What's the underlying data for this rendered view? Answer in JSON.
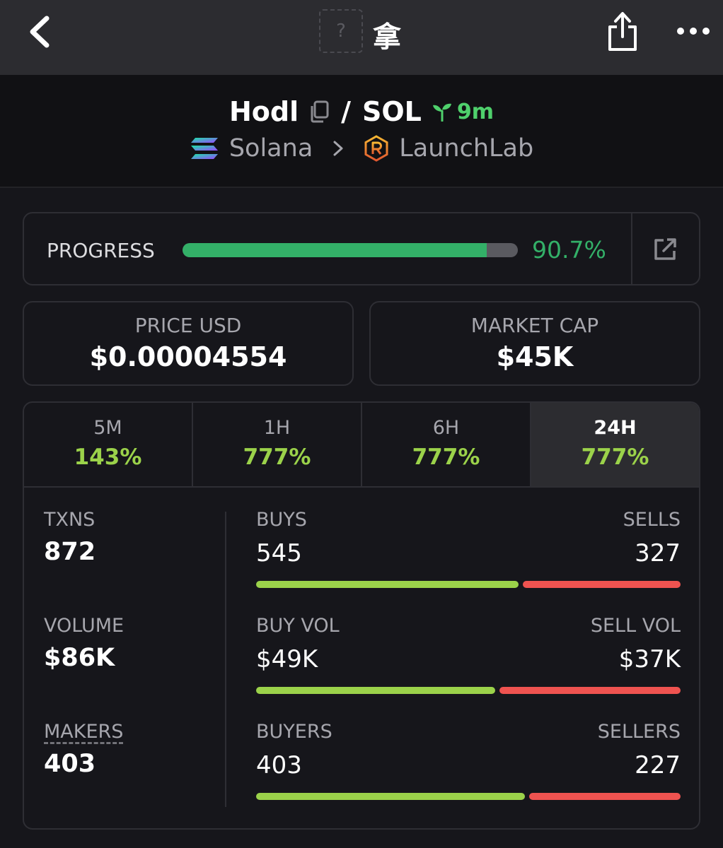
{
  "topbar": {
    "token_placeholder": "?",
    "title": "拿"
  },
  "header": {
    "token_name": "Hodl",
    "separator": "/",
    "quote": "SOL",
    "age": "9m",
    "chain": "Solana",
    "dex": "LaunchLab"
  },
  "progress": {
    "label": "PROGRESS",
    "value_text": "90.7%",
    "percent": 90.7
  },
  "price": {
    "label": "PRICE USD",
    "value": "$0.00004554"
  },
  "market_cap": {
    "label": "MARKET CAP",
    "value": "$45K"
  },
  "timeframes": [
    {
      "name": "5M",
      "change": "143%"
    },
    {
      "name": "1H",
      "change": "777%"
    },
    {
      "name": "6H",
      "change": "777%"
    },
    {
      "name": "24H",
      "change": "777%",
      "active": true
    }
  ],
  "stats": {
    "txns": {
      "label": "TXNS",
      "value": "872"
    },
    "volume": {
      "label": "VOLUME",
      "value": "$86K"
    },
    "makers": {
      "label": "MAKERS",
      "value": "403"
    },
    "buys": {
      "label": "BUYS",
      "value": "545",
      "count": 545
    },
    "sells": {
      "label": "SELLS",
      "value": "327",
      "count": 327
    },
    "buy_vol": {
      "label": "BUY VOL",
      "value": "$49K",
      "amount": 49
    },
    "sell_vol": {
      "label": "SELL VOL",
      "value": "$37K",
      "amount": 37
    },
    "buyers": {
      "label": "BUYERS",
      "value": "403",
      "count": 403
    },
    "sellers": {
      "label": "SELLERS",
      "value": "227",
      "count": 227
    }
  },
  "colors": {
    "accent_green": "#33b068",
    "buy_green": "#9bd24a",
    "sell_red": "#ef5350"
  }
}
